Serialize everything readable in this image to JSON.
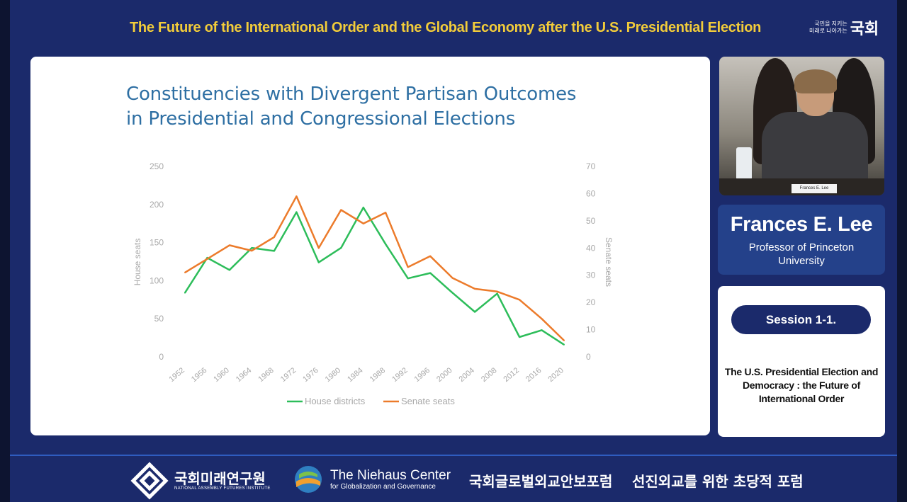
{
  "header": {
    "title": "The Future of the International Order and the Global Economy after the U.S. Presidential Election",
    "logo_small_1": "국민을 지키는",
    "logo_small_2": "미래로 나아가는",
    "logo_big": "국회"
  },
  "slide": {
    "title_line1": "Constituencies with Divergent Partisan Outcomes",
    "title_line2": "in Presidential and Congressional Elections"
  },
  "chart_data": {
    "type": "line",
    "x": [
      1952,
      1956,
      1960,
      1964,
      1968,
      1972,
      1976,
      1980,
      1984,
      1988,
      1992,
      1996,
      2000,
      2004,
      2008,
      2012,
      2016,
      2020
    ],
    "series": [
      {
        "name": "House districts",
        "axis": "left",
        "color": "#2dbd5a",
        "values": [
          84,
          130,
          114,
          143,
          139,
          190,
          124,
          143,
          196,
          148,
          103,
          110,
          84,
          59,
          83,
          26,
          35,
          16
        ]
      },
      {
        "name": "Senate seats",
        "axis": "right",
        "color": "#ec7b2b",
        "values": [
          31,
          36,
          41,
          39,
          44,
          59,
          40,
          54,
          49,
          53,
          33,
          37,
          29,
          25,
          24,
          21,
          14,
          6
        ]
      }
    ],
    "ylabel_left": "House seats",
    "ylabel_right": "Senate seats",
    "ylim_left": [
      0,
      250
    ],
    "yticks_left": [
      0,
      50,
      100,
      150,
      200,
      250
    ],
    "ylim_right": [
      0,
      70
    ],
    "yticks_right": [
      0,
      10,
      20,
      30,
      40,
      50,
      60,
      70
    ],
    "legend_position": "bottom"
  },
  "speaker": {
    "nameplate": "Frances E. Lee",
    "name": "Frances E. Lee",
    "role_line1": "Professor of Princeton",
    "role_line2": "University"
  },
  "session": {
    "label": "Session 1-1.",
    "desc_line1": "The U.S. Presidential Election and",
    "desc_line2": "Democracy : the Future of",
    "desc_line3": "International Order"
  },
  "footer": {
    "nafi_kr": "국회미래연구원",
    "nafi_en": "NATIONAL ASSEMBLY FUTURES INSTITUTE",
    "niehaus_title": "The Niehaus Center",
    "niehaus_sub": "for Globalization and Governance",
    "forum1": "국회글로벌외교안보포럼",
    "forum2": "선진외교를 위한 초당적 포럼"
  },
  "colors": {
    "background": "#1b2a6b",
    "header_title": "#f2cc3a",
    "slide_title": "#2e6fa3",
    "house_line": "#2dbd5a",
    "senate_line": "#ec7b2b"
  }
}
